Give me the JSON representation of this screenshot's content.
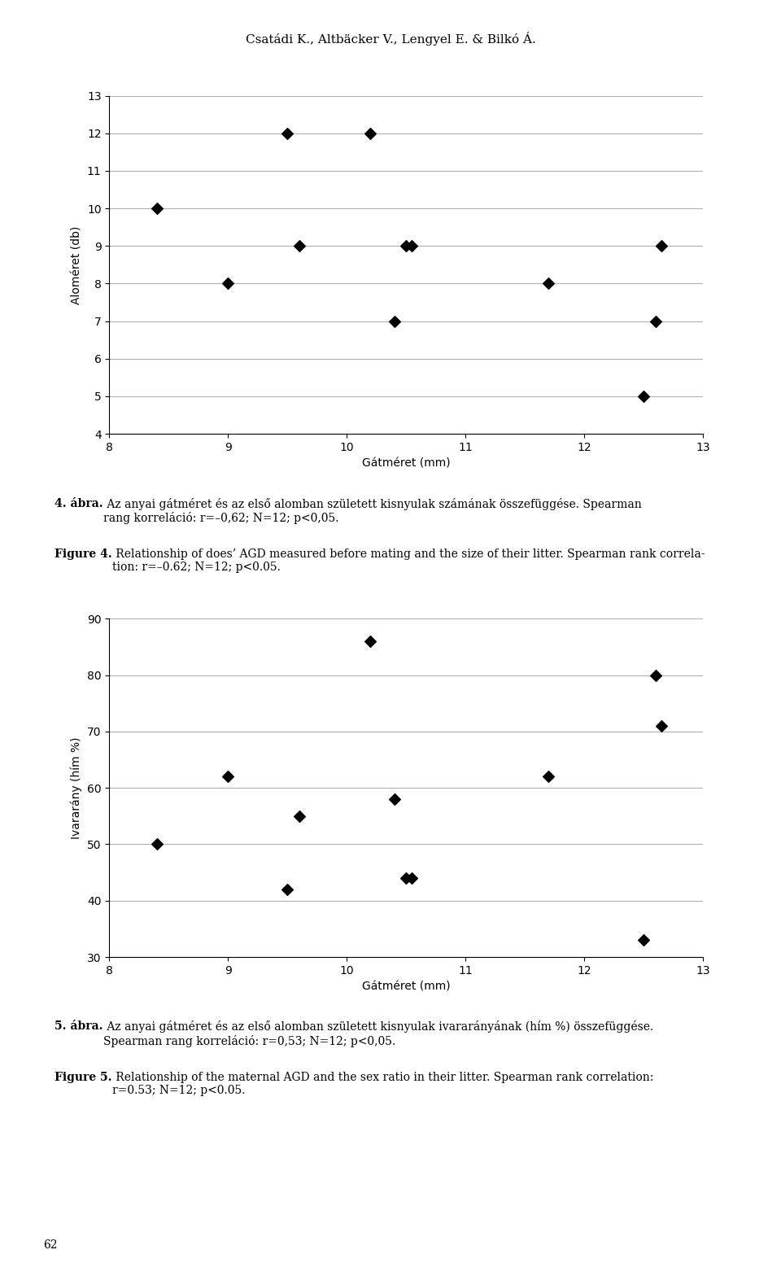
{
  "header": "Csatádi K., Altbäcker V., Lengyel E. & Bilkó Á.",
  "page_number": "62",
  "chart_data": [
    {
      "type": "scatter",
      "x": [
        8.4,
        9.0,
        9.5,
        9.6,
        10.2,
        10.4,
        10.5,
        10.55,
        11.7,
        12.5,
        12.6,
        12.65
      ],
      "values": [
        10,
        8,
        12,
        9,
        12,
        7,
        9,
        9,
        8,
        5,
        7,
        9
      ],
      "xlabel": "Gátméret (mm)",
      "ylabel": "Aloméret (db)",
      "xlim": [
        8,
        13
      ],
      "ylim": [
        4,
        13
      ],
      "xticks": [
        8,
        9,
        10,
        11,
        12,
        13
      ],
      "yticks": [
        4,
        5,
        6,
        7,
        8,
        9,
        10,
        11,
        12,
        13
      ],
      "grid": "y",
      "marker": "diamond",
      "color": "#000000",
      "annotations": [
        [
          "4. ábra.",
          " Az anyai gátméret és az első alomban született kisnyulak számának összefüggése. Spearman\nrang korreláció: r=–0,62; N=12; p<0,05."
        ],
        [
          "Figure 4.",
          " Relationship of does’ AGD measured before mating and the size of their litter. Spearman rank correla-\ntion: r=–0.62; N=12; p<0.05."
        ]
      ]
    },
    {
      "type": "scatter",
      "x": [
        8.4,
        9.0,
        9.5,
        9.6,
        10.2,
        10.4,
        10.5,
        10.55,
        11.7,
        12.5,
        12.6,
        12.65
      ],
      "values": [
        50,
        62,
        42,
        55,
        86,
        58,
        44,
        44,
        62,
        33,
        80,
        71
      ],
      "xlabel": "Gátméret (mm)",
      "ylabel": "Ivararány (hím %)",
      "xlim": [
        8,
        13
      ],
      "ylim": [
        30,
        90
      ],
      "xticks": [
        8,
        9,
        10,
        11,
        12,
        13
      ],
      "yticks": [
        30,
        40,
        50,
        60,
        70,
        80,
        90
      ],
      "grid": "y",
      "marker": "diamond",
      "color": "#000000",
      "annotations": [
        [
          "5. ábra.",
          " Az anyai gátméret és az első alomban született kisnyulak ivararányának (hím %) összefüggése.\nSpearman rang korreláció: r=0,53; N=12; p<0,05."
        ],
        [
          "Figure 5.",
          " Relationship of the maternal AGD and the sex ratio in their litter. Spearman rank correlation:\nr=0.53; N=12; p<0.05."
        ]
      ]
    }
  ]
}
